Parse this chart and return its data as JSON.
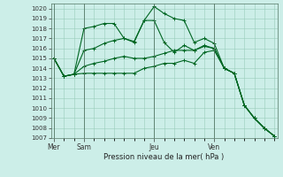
{
  "background_color": "#cceee8",
  "grid_color": "#99ccbb",
  "line_color": "#006622",
  "marker_color": "#006622",
  "title": "Pression niveau de la mer( hPa )",
  "ylim": [
    1007,
    1020.5
  ],
  "yticks": [
    1007,
    1008,
    1009,
    1010,
    1011,
    1012,
    1013,
    1014,
    1015,
    1016,
    1017,
    1018,
    1019,
    1020
  ],
  "day_labels": [
    "Mer",
    "Sam",
    "Jeu",
    "Ven"
  ],
  "day_positions": [
    0,
    3,
    10,
    16
  ],
  "xlim": [
    -0.3,
    22.3
  ],
  "series": [
    [
      1015,
      1013.2,
      1013.4,
      1018,
      1018.2,
      1018.5,
      1018.5,
      1017,
      1016.6,
      1018.8,
      1020.2,
      1019.5,
      1019,
      1018.8,
      1016.6,
      1017,
      1016.5,
      1014.0,
      1013.5,
      1010.3,
      1009,
      1008,
      1007.2
    ],
    [
      1015,
      1013.2,
      1013.4,
      1015.8,
      1016,
      1016.5,
      1016.8,
      1017,
      1016.7,
      1018.8,
      1018.8,
      1016.6,
      1015.6,
      1016.3,
      1015.8,
      1016.3,
      1016.0,
      1014.0,
      1013.5,
      1010.3,
      1009,
      1008,
      1007.2
    ],
    [
      1015,
      1013.2,
      1013.4,
      1014.2,
      1014.5,
      1014.7,
      1015.0,
      1015.2,
      1015.0,
      1015.0,
      1015.2,
      1015.5,
      1015.8,
      1015.8,
      1015.8,
      1016.2,
      1016.0,
      1014.0,
      1013.5,
      1010.3,
      1009,
      1008,
      1007.2
    ],
    [
      1015,
      1013.2,
      1013.4,
      1013.5,
      1013.5,
      1013.5,
      1013.5,
      1013.5,
      1013.5,
      1014.0,
      1014.2,
      1014.5,
      1014.5,
      1014.8,
      1014.5,
      1015.6,
      1015.8,
      1014.0,
      1013.5,
      1010.3,
      1009,
      1008,
      1007.2
    ]
  ]
}
